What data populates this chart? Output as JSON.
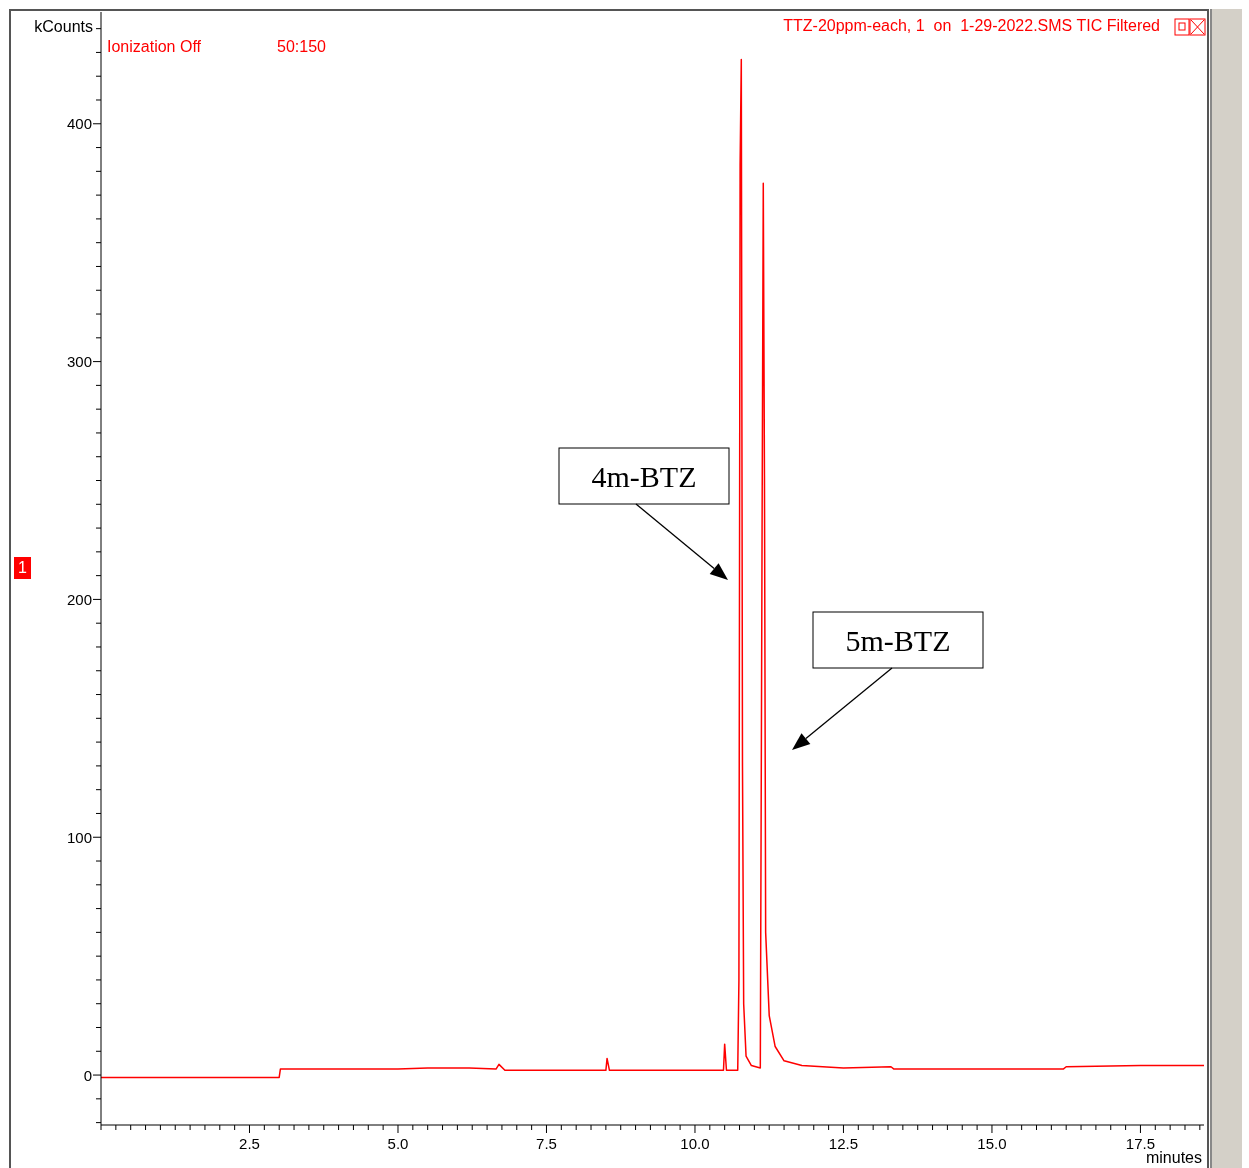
{
  "chart_data": {
    "type": "line",
    "title": "TTZ-20ppm-each, 1  on  1-29-2022.SMS TIC Filtered",
    "xlabel": "minutes",
    "ylabel": "kCounts",
    "x": [
      0,
      3.0,
      3.02,
      3.5,
      5.0,
      5.5,
      6.2,
      6.65,
      6.7,
      6.8,
      8.5,
      8.52,
      8.56,
      10.0,
      10.48,
      10.5,
      10.53,
      10.72,
      10.74,
      10.76,
      10.78,
      10.8,
      10.82,
      10.86,
      10.95,
      11.1,
      11.13,
      11.15,
      11.17,
      11.19,
      11.25,
      11.35,
      11.5,
      11.8,
      12.5,
      13.3,
      13.35,
      15.0,
      16.2,
      16.25,
      17.5,
      18.57
    ],
    "series": [
      {
        "color": "#ff0000",
        "values": [
          -1,
          -1,
          2.5,
          2.5,
          2.5,
          3,
          3,
          2.5,
          4.5,
          2,
          2,
          7,
          2,
          2,
          2,
          13,
          2,
          2,
          40,
          383,
          427,
          130,
          30,
          8,
          4,
          3,
          230,
          375,
          252,
          60,
          25,
          12,
          6,
          4,
          3,
          3.5,
          2.5,
          2.5,
          2.5,
          3.5,
          4,
          4
        ]
      }
    ],
    "xlim": [
      0,
      18.57
    ],
    "ylim": [
      -21,
      447
    ],
    "xticks": [
      {
        "value": 0,
        "label": null
      },
      {
        "value": 0.25,
        "label": null
      },
      {
        "value": 0.5,
        "label": null
      },
      {
        "value": 0.75,
        "label": null
      },
      {
        "value": 1,
        "label": null
      },
      {
        "value": 1.25,
        "label": null
      },
      {
        "value": 1.5,
        "label": null
      },
      {
        "value": 1.75,
        "label": null
      },
      {
        "value": 2,
        "label": null
      },
      {
        "value": 2.25,
        "label": null
      },
      2.5,
      {
        "value": 2.75,
        "label": null
      },
      {
        "value": 3,
        "label": null
      },
      {
        "value": 3.25,
        "label": null
      },
      {
        "value": 3.5,
        "label": null
      },
      {
        "value": 3.75,
        "label": null
      },
      {
        "value": 4,
        "label": null
      },
      {
        "value": 4.25,
        "label": null
      },
      {
        "value": 4.5,
        "label": null
      },
      {
        "value": 4.75,
        "label": null
      },
      {
        "value": 5,
        "label": "5.0"
      },
      {
        "value": 5.25,
        "label": null
      },
      {
        "value": 5.5,
        "label": null
      },
      {
        "value": 5.75,
        "label": null
      },
      {
        "value": 6,
        "label": null
      },
      {
        "value": 6.25,
        "label": null
      },
      {
        "value": 6.5,
        "label": null
      },
      {
        "value": 6.75,
        "label": null
      },
      {
        "value": 7,
        "label": null
      },
      {
        "value": 7.25,
        "label": null
      },
      7.5,
      {
        "value": 7.75,
        "label": null
      },
      {
        "value": 8,
        "label": null
      },
      {
        "value": 8.25,
        "label": null
      },
      {
        "value": 8.5,
        "label": null
      },
      {
        "value": 8.75,
        "label": null
      },
      {
        "value": 9,
        "label": null
      },
      {
        "value": 9.25,
        "label": null
      },
      {
        "value": 9.5,
        "label": null
      },
      {
        "value": 9.75,
        "label": null
      },
      {
        "value": 10,
        "label": "10.0"
      },
      {
        "value": 10.25,
        "label": null
      },
      {
        "value": 10.5,
        "label": null
      },
      {
        "value": 10.75,
        "label": null
      },
      {
        "value": 11,
        "label": null
      },
      {
        "value": 11.25,
        "label": null
      },
      {
        "value": 11.5,
        "label": null
      },
      {
        "value": 11.75,
        "label": null
      },
      {
        "value": 12,
        "label": null
      },
      {
        "value": 12.25,
        "label": null
      },
      12.5,
      {
        "value": 12.75,
        "label": null
      },
      {
        "value": 13,
        "label": null
      },
      {
        "value": 13.25,
        "label": null
      },
      {
        "value": 13.5,
        "label": null
      },
      {
        "value": 13.75,
        "label": null
      },
      {
        "value": 14,
        "label": null
      },
      {
        "value": 14.25,
        "label": null
      },
      {
        "value": 14.5,
        "label": null
      },
      {
        "value": 14.75,
        "label": null
      },
      {
        "value": 15,
        "label": "15.0"
      },
      {
        "value": 15.25,
        "label": null
      },
      {
        "value": 15.5,
        "label": null
      },
      {
        "value": 15.75,
        "label": null
      },
      {
        "value": 16,
        "label": null
      },
      {
        "value": 16.25,
        "label": null
      },
      {
        "value": 16.5,
        "label": null
      },
      {
        "value": 16.75,
        "label": null
      },
      {
        "value": 17,
        "label": null
      },
      {
        "value": 17.25,
        "label": null
      },
      17.5,
      {
        "value": 17.75,
        "label": null
      },
      {
        "value": 18,
        "label": null
      },
      {
        "value": 18.25,
        "label": null
      },
      {
        "value": 18.5,
        "label": null
      }
    ],
    "yticks": [
      {
        "value": -20,
        "label": null
      },
      {
        "value": -10,
        "label": null
      },
      0,
      {
        "value": 10,
        "label": null
      },
      {
        "value": 20,
        "label": null
      },
      {
        "value": 30,
        "label": null
      },
      {
        "value": 40,
        "label": null
      },
      {
        "value": 50,
        "label": null
      },
      {
        "value": 60,
        "label": null
      },
      {
        "value": 70,
        "label": null
      },
      {
        "value": 80,
        "label": null
      },
      {
        "value": 90,
        "label": null
      },
      100,
      {
        "value": 110,
        "label": null
      },
      {
        "value": 120,
        "label": null
      },
      {
        "value": 130,
        "label": null
      },
      {
        "value": 140,
        "label": null
      },
      {
        "value": 150,
        "label": null
      },
      {
        "value": 160,
        "label": null
      },
      {
        "value": 170,
        "label": null
      },
      {
        "value": 180,
        "label": null
      },
      {
        "value": 190,
        "label": null
      },
      200,
      {
        "value": 210,
        "label": null
      },
      {
        "value": 220,
        "label": null
      },
      {
        "value": 230,
        "label": null
      },
      {
        "value": 240,
        "label": null
      },
      {
        "value": 250,
        "label": null
      },
      {
        "value": 260,
        "label": null
      },
      {
        "value": 270,
        "label": null
      },
      {
        "value": 280,
        "label": null
      },
      {
        "value": 290,
        "label": null
      },
      300,
      {
        "value": 310,
        "label": null
      },
      {
        "value": 320,
        "label": null
      },
      {
        "value": 330,
        "label": null
      },
      {
        "value": 340,
        "label": null
      },
      {
        "value": 350,
        "label": null
      },
      {
        "value": 360,
        "label": null
      },
      {
        "value": 370,
        "label": null
      },
      {
        "value": 380,
        "label": null
      },
      {
        "value": 390,
        "label": null
      },
      400,
      {
        "value": 410,
        "label": null
      },
      {
        "value": 420,
        "label": null
      },
      {
        "value": 430,
        "label": null
      },
      {
        "value": 440,
        "label": null
      }
    ],
    "grid": false,
    "legend": false,
    "marker": "none",
    "line_style": "solid",
    "annotations": [
      "Ionization Off",
      "50:150",
      "1",
      "4m-BTZ",
      "5m-BTZ"
    ]
  }
}
